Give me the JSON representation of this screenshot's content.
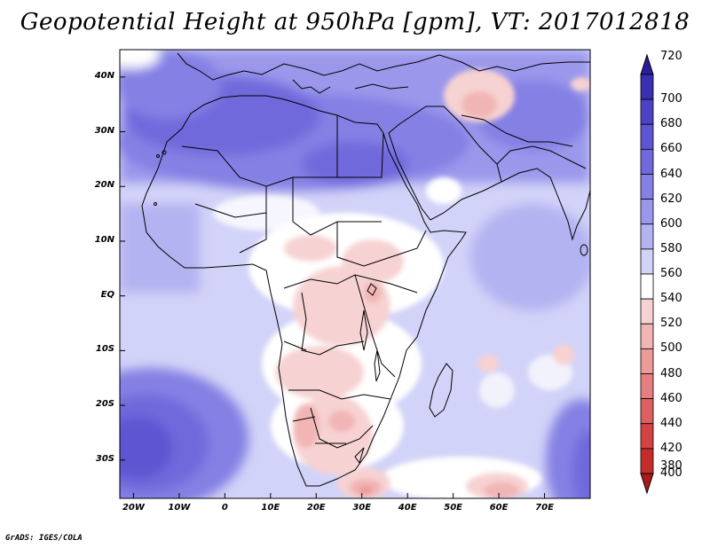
{
  "title": "Geopotential Height at 950hPa [gpm], VT: 2017012818",
  "footer": "GrADS: IGES/COLA",
  "map": {
    "lon_range": [
      -23,
      80
    ],
    "lat_range": [
      -37,
      45
    ],
    "lon_ticks": [
      {
        "label": "20W",
        "lon": -20
      },
      {
        "label": "10W",
        "lon": -10
      },
      {
        "label": "0",
        "lon": 0
      },
      {
        "label": "10E",
        "lon": 10
      },
      {
        "label": "20E",
        "lon": 20
      },
      {
        "label": "30E",
        "lon": 30
      },
      {
        "label": "40E",
        "lon": 40
      },
      {
        "label": "50E",
        "lon": 50
      },
      {
        "label": "60E",
        "lon": 60
      },
      {
        "label": "70E",
        "lon": 70
      }
    ],
    "lat_ticks": [
      {
        "label": "40N",
        "lat": 40
      },
      {
        "label": "30N",
        "lat": 30
      },
      {
        "label": "20N",
        "lat": 20
      },
      {
        "label": "10N",
        "lat": 10
      },
      {
        "label": "EQ",
        "lat": 0
      },
      {
        "label": "10S",
        "lat": -10
      },
      {
        "label": "20S",
        "lat": -20
      },
      {
        "label": "30S",
        "lat": -30
      }
    ]
  },
  "colorbar": {
    "levels": [
      "720",
      "700",
      "680",
      "660",
      "640",
      "620",
      "600",
      "580",
      "560",
      "540",
      "520",
      "500",
      "480",
      "460",
      "440",
      "420",
      "400",
      "380"
    ],
    "colors": [
      "#2a1e9a",
      "#3a2fb0",
      "#4b42c4",
      "#5d55d2",
      "#6f69dc",
      "#8480e4",
      "#9b98ec",
      "#b4b3f2",
      "#d2d3f8",
      "#ffffff",
      "#f7d2d2",
      "#f1b5b5",
      "#ec9a9a",
      "#e57e7e",
      "#dd6060",
      "#d44343",
      "#c42b2b",
      "#aa1a1a"
    ]
  },
  "chart_data": {
    "type": "heatmap",
    "title": "Geopotential Height at 950hPa [gpm], VT: 2017012818",
    "variable": "Geopotential Height at 950hPa",
    "units": "gpm",
    "valid_time": "2017012818",
    "contour_levels": [
      380,
      400,
      420,
      440,
      460,
      480,
      500,
      520,
      540,
      560,
      580,
      600,
      620,
      640,
      660,
      680,
      700,
      720
    ],
    "xlim": [
      -23,
      80
    ],
    "ylim": [
      -37,
      45
    ]
  }
}
